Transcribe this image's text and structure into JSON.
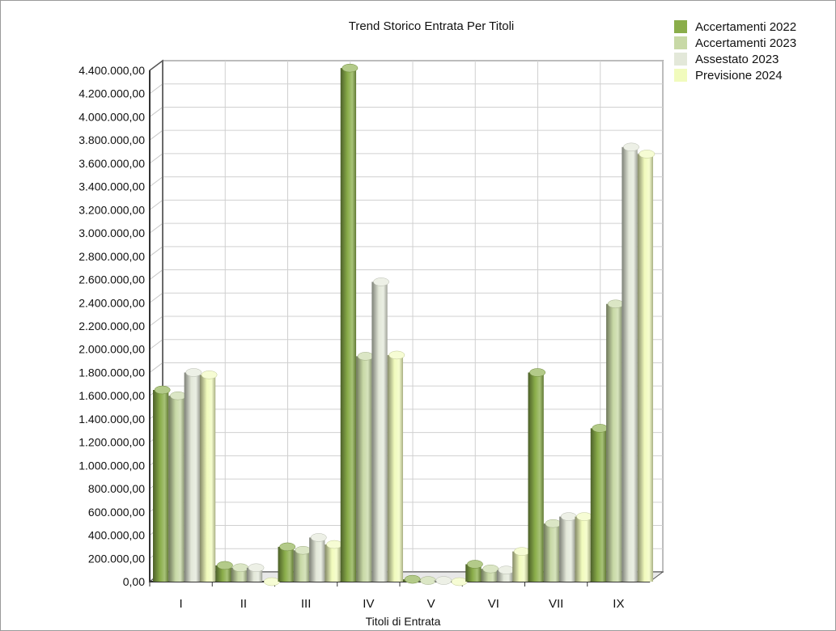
{
  "chart_data": {
    "type": "bar",
    "title": "Trend Storico Entrata Per Titoli",
    "xlabel": "Titoli di Entrata",
    "ylabel": "",
    "categories": [
      "I",
      "II",
      "III",
      "IV",
      "V",
      "VI",
      "VII",
      "IX"
    ],
    "ylim": [
      0,
      4400000
    ],
    "y_ticks": [
      "0,00",
      "200.000,00",
      "400.000,00",
      "600.000,00",
      "800.000,00",
      "1.000.000,00",
      "1.200.000,00",
      "1.400.000,00",
      "1.600.000,00",
      "1.800.000,00",
      "2.000.000,00",
      "2.200.000,00",
      "2.400.000,00",
      "2.600.000,00",
      "2.800.000,00",
      "3.000.000,00",
      "3.200.000,00",
      "3.400.000,00",
      "3.600.000,00",
      "3.800.000,00",
      "4.000.000,00",
      "4.200.000,00",
      "4.400.000,00"
    ],
    "grid": true,
    "legend_position": "top-right",
    "series": [
      {
        "name": "Accertamenti 2022",
        "color": "#8aad4a",
        "values": [
          1650000,
          140000,
          300000,
          4420000,
          20000,
          150000,
          1800000,
          1320000
        ]
      },
      {
        "name": "Accertamenti 2023",
        "color": "#c8d9a6",
        "values": [
          1600000,
          120000,
          270000,
          1940000,
          10000,
          110000,
          500000,
          2390000
        ]
      },
      {
        "name": "Assestato 2023",
        "color": "#e3e8d9",
        "values": [
          1800000,
          120000,
          380000,
          2580000,
          10000,
          100000,
          560000,
          3740000
        ]
      },
      {
        "name": "Previsione 2024",
        "color": "#f1fbbd",
        "values": [
          1780000,
          0,
          320000,
          1950000,
          0,
          260000,
          560000,
          3680000
        ]
      }
    ]
  }
}
